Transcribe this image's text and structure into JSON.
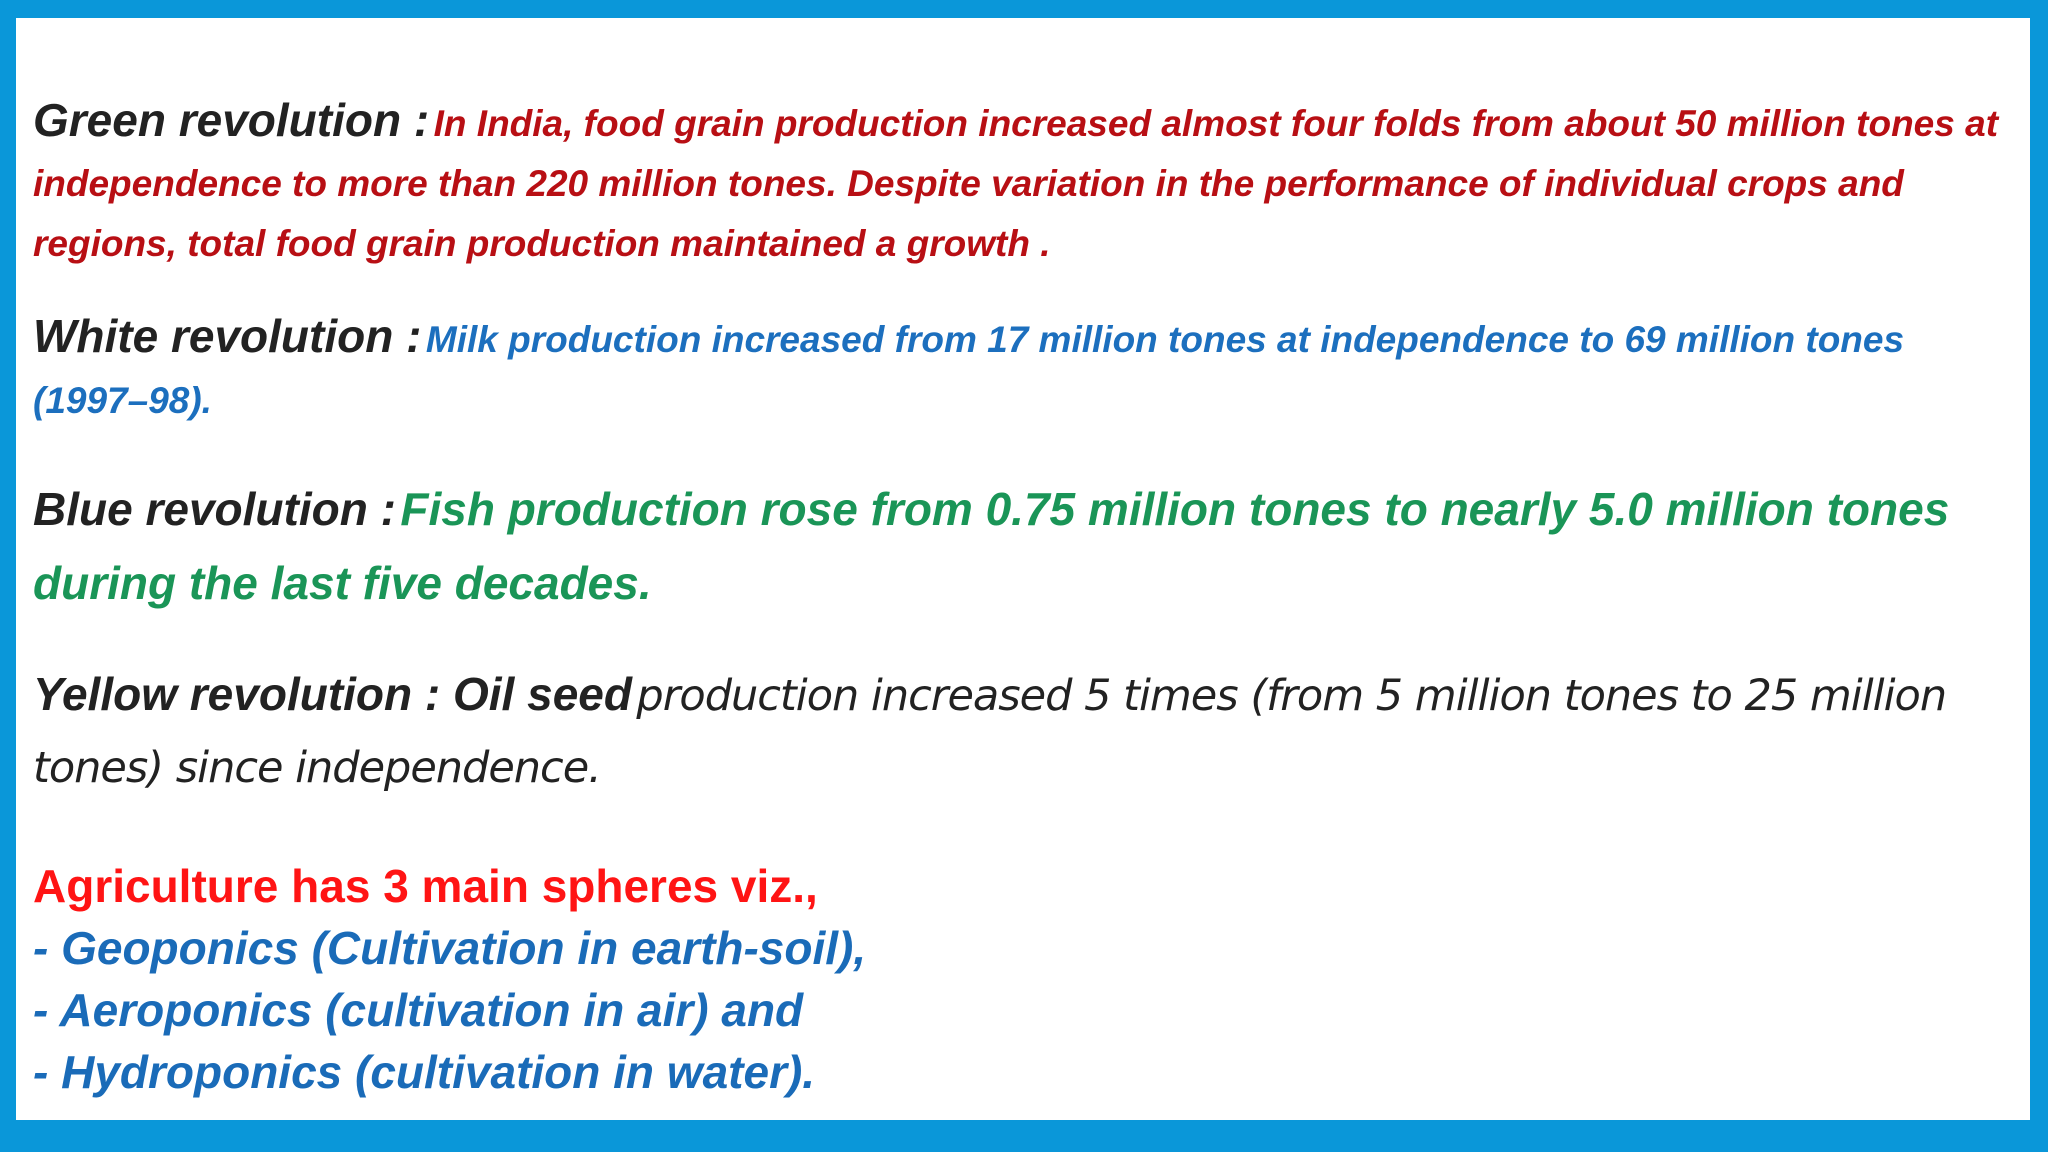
{
  "sections": [
    {
      "label": "Green revolution :",
      "text": "In India, food grain production increased almost four folds from about 50 million tones at independence to more than 220 million tones. Despite variation in the performance of individual crops and regions, total food grain production maintained a growth ."
    },
    {
      "label": "White revolution :",
      "text": "Milk production increased from 17 million tones at independence to 69 million tones (1997–98)."
    },
    {
      "label": "Blue revolution :",
      "text": "Fish production rose from 0.75 million tones to nearly 5.0 million tones during the last five decades."
    },
    {
      "label": "Yellow revolution : Oil seed",
      "text": "production increased 5 times (from 5 million tones to 25 million tones) since independence."
    }
  ],
  "spheres": {
    "title": "Agriculture has 3 main spheres viz.,",
    "items": [
      "- Geoponics (Cultivation in earth-soil),",
      "- Aeroponics (cultivation in air) and",
      "- Hydroponics (cultivation in water)."
    ]
  }
}
